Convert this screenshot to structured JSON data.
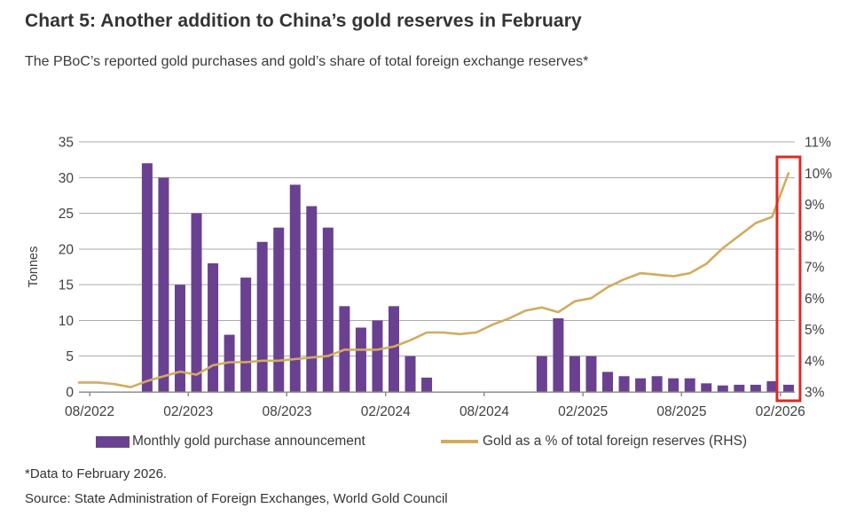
{
  "header": {
    "title": "Chart 5: Another addition to China’s gold reserves in February",
    "subtitle": "The PBoC’s reported gold purchases and gold’s share of total foreign exchange reserves*"
  },
  "legend": {
    "bars_label": "Monthly gold purchase announcement",
    "line_label": "Gold as a % of total foreign reserves (RHS)"
  },
  "footer": {
    "footnote": "*Data to February 2026.",
    "source": "Source: State Administration of Foreign Exchanges, World Gold Council"
  },
  "colors": {
    "bar": "#6a4191",
    "line": "#d2ab5e",
    "highlight_box": "#d92b26",
    "grid": "#ababab",
    "axis": "#8f8f8f",
    "tick_text": "#404040"
  },
  "chart_data": {
    "type": "bar",
    "subtype": "combo bar + line, dual axis",
    "title": "Chart 5: Another addition to China’s gold reserves in February",
    "xlabel": "",
    "ylabel": "Tonnes",
    "grid": "horizontal gridlines on, from left axis ticks",
    "legend_position": "bottom",
    "x_months": [
      "08/2022",
      "09/2022",
      "10/2022",
      "11/2022",
      "12/2022",
      "01/2023",
      "02/2023",
      "03/2023",
      "04/2023",
      "05/2023",
      "06/2023",
      "07/2023",
      "08/2023",
      "09/2023",
      "10/2023",
      "11/2023",
      "12/2023",
      "01/2024",
      "02/2024",
      "03/2024",
      "04/2024",
      "05/2024",
      "06/2024",
      "07/2024",
      "08/2024",
      "09/2024",
      "10/2024",
      "11/2024",
      "12/2024",
      "01/2025",
      "02/2025",
      "03/2025",
      "04/2025",
      "05/2025",
      "06/2025",
      "07/2025",
      "08/2025",
      "09/2025",
      "10/2025",
      "11/2025",
      "12/2025",
      "01/2026",
      "02/2026"
    ],
    "x_tick_labels": [
      "08/2022",
      "02/2023",
      "08/2023",
      "02/2024",
      "08/2024",
      "02/2025",
      "08/2025",
      "02/2026"
    ],
    "left_axis": {
      "label": "Tonnes",
      "min": 0,
      "max": 35,
      "ticks": [
        0,
        5,
        10,
        15,
        20,
        25,
        30,
        35
      ]
    },
    "right_axis": {
      "min_pct": 3,
      "max_pct": 11,
      "tick_labels": [
        "3%",
        "4%",
        "5%",
        "6%",
        "7%",
        "8%",
        "9%",
        "10%",
        "11%"
      ]
    },
    "series": [
      {
        "name": "Monthly gold purchase announcement",
        "type": "bar",
        "axis": "left",
        "unit": "tonnes",
        "values": [
          0,
          0,
          0,
          32,
          30,
          15,
          25,
          18,
          8,
          16,
          21,
          23,
          29,
          26,
          23,
          12,
          9,
          10,
          12,
          5,
          2,
          0,
          0,
          0,
          0,
          0,
          0,
          5,
          10.3,
          5,
          5,
          2.8,
          2.2,
          1.9,
          2.2,
          1.9,
          1.9,
          1.2,
          0.9,
          1,
          1,
          1.5,
          1
        ]
      },
      {
        "name": "Gold as a % of total foreign reserves (RHS)",
        "type": "line",
        "axis": "right",
        "unit": "%",
        "values": [
          3.3,
          3.25,
          3.15,
          3.35,
          3.5,
          3.65,
          3.55,
          3.85,
          3.95,
          3.95,
          4,
          4,
          4.05,
          4.1,
          4.15,
          4.35,
          4.35,
          4.35,
          4.45,
          4.65,
          4.9,
          4.9,
          4.85,
          4.9,
          5.15,
          5.35,
          5.6,
          5.7,
          5.55,
          5.9,
          6,
          6.35,
          6.6,
          6.8,
          6.75,
          6.7,
          6.8,
          7.1,
          7.6,
          8,
          8.4,
          8.6,
          10
        ]
      }
    ],
    "highlight": {
      "target_month": "02/2026",
      "shape": "red outline box around final month column"
    }
  }
}
